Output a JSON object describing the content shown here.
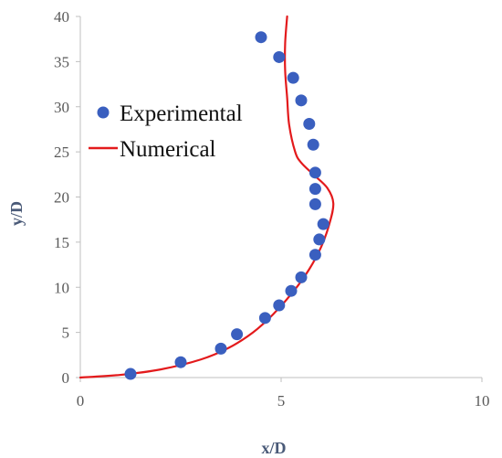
{
  "chart_data": {
    "type": "scatter",
    "xlabel": "x/D",
    "ylabel": "y/D",
    "xlim": [
      0,
      10
    ],
    "ylim": [
      0,
      40
    ],
    "xticks": [
      "0",
      "5",
      "10"
    ],
    "yticks": [
      "0",
      "5",
      "10",
      "15",
      "20",
      "25",
      "30",
      "35",
      "40"
    ],
    "grid": false,
    "legend_position": "upper-left",
    "series": [
      {
        "name": "Experimental",
        "type": "scatter",
        "color": "#3a5fbf",
        "points": [
          {
            "x": 1.25,
            "y": 0.4
          },
          {
            "x": 2.5,
            "y": 1.7
          },
          {
            "x": 3.5,
            "y": 3.2
          },
          {
            "x": 3.9,
            "y": 4.8
          },
          {
            "x": 4.6,
            "y": 6.6
          },
          {
            "x": 4.95,
            "y": 8.0
          },
          {
            "x": 5.25,
            "y": 9.6
          },
          {
            "x": 5.5,
            "y": 11.1
          },
          {
            "x": 5.85,
            "y": 13.6
          },
          {
            "x": 5.95,
            "y": 15.3
          },
          {
            "x": 6.05,
            "y": 17.0
          },
          {
            "x": 5.85,
            "y": 19.2
          },
          {
            "x": 5.85,
            "y": 20.9
          },
          {
            "x": 5.85,
            "y": 22.7
          },
          {
            "x": 5.8,
            "y": 25.8
          },
          {
            "x": 5.7,
            "y": 28.1
          },
          {
            "x": 5.5,
            "y": 30.7
          },
          {
            "x": 5.3,
            "y": 33.2
          },
          {
            "x": 4.95,
            "y": 35.5
          },
          {
            "x": 4.5,
            "y": 37.7
          }
        ]
      },
      {
        "name": "Numerical",
        "type": "line",
        "color": "#e31a1c",
        "points": [
          {
            "x": 0.0,
            "y": 0.0
          },
          {
            "x": 1.0,
            "y": 0.3
          },
          {
            "x": 2.0,
            "y": 0.9
          },
          {
            "x": 3.0,
            "y": 2.0
          },
          {
            "x": 3.7,
            "y": 3.3
          },
          {
            "x": 4.3,
            "y": 5.0
          },
          {
            "x": 4.8,
            "y": 7.0
          },
          {
            "x": 5.3,
            "y": 9.5
          },
          {
            "x": 5.7,
            "y": 12.0
          },
          {
            "x": 6.0,
            "y": 14.5
          },
          {
            "x": 6.2,
            "y": 17.0
          },
          {
            "x": 6.3,
            "y": 19.3
          },
          {
            "x": 6.15,
            "y": 21.0
          },
          {
            "x": 5.8,
            "y": 22.5
          },
          {
            "x": 5.5,
            "y": 23.8
          },
          {
            "x": 5.35,
            "y": 25.0
          },
          {
            "x": 5.2,
            "y": 28.0
          },
          {
            "x": 5.15,
            "y": 31.0
          },
          {
            "x": 5.1,
            "y": 34.0
          },
          {
            "x": 5.1,
            "y": 37.0
          },
          {
            "x": 5.15,
            "y": 40.0
          }
        ]
      }
    ]
  }
}
